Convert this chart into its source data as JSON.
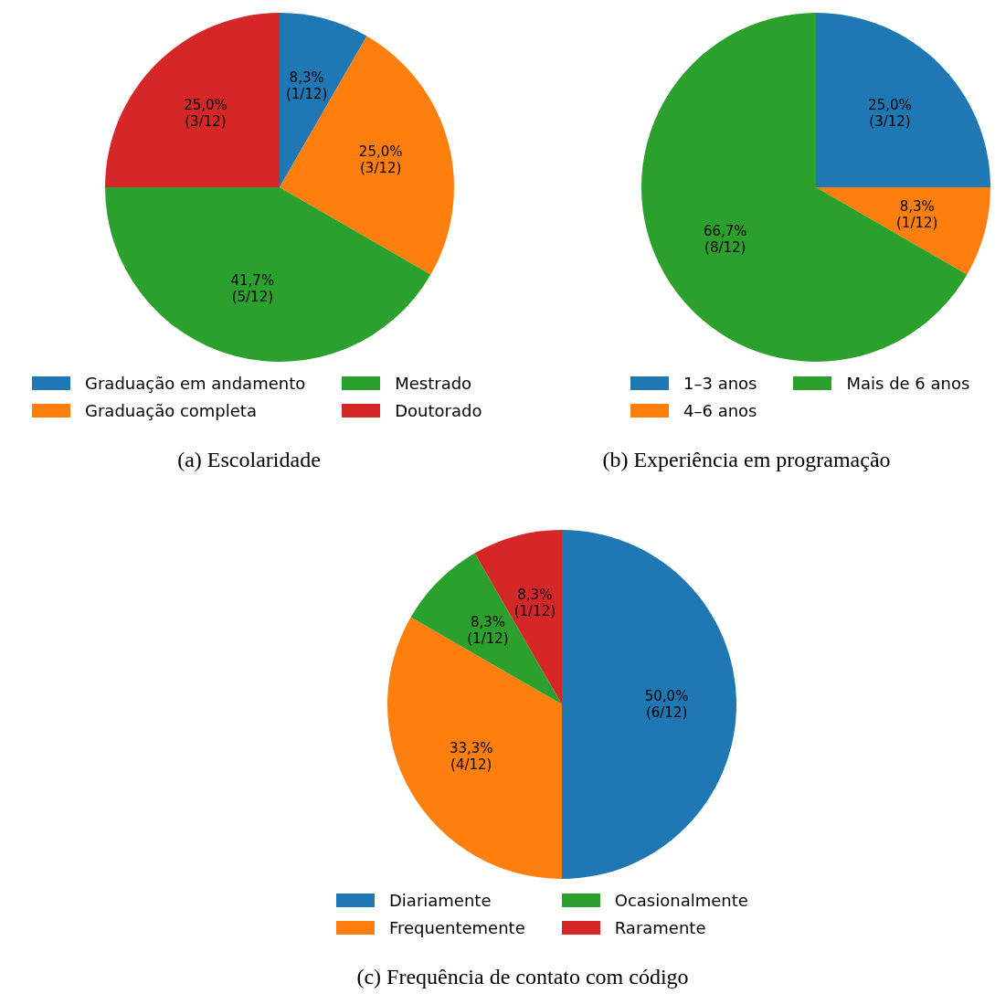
{
  "chart_data": [
    {
      "type": "pie",
      "title": "(a) Escolaridade",
      "categories": [
        "Graduação em andamento",
        "Graduação completa",
        "Mestrado",
        "Doutorado"
      ],
      "values": [
        1,
        3,
        5,
        3
      ],
      "colors": [
        "#1f77b4",
        "#ff7f0e",
        "#2ca02c",
        "#d62728"
      ],
      "value_labels": [
        "8,3%\n(1/12)",
        "25,0%\n(3/12)",
        "41,7%\n(5/12)",
        "25,0%\n(3/12)"
      ],
      "legend": "bottom"
    },
    {
      "type": "pie",
      "title": "(b) Experiência em programação",
      "categories": [
        "1–3 anos",
        "4–6 anos",
        "Mais de 6 anos"
      ],
      "values": [
        3,
        1,
        8
      ],
      "colors": [
        "#1f77b4",
        "#ff7f0e",
        "#2ca02c"
      ],
      "value_labels": [
        "25,0%\n(3/12)",
        "8,3%\n(1/12)",
        "66,7%\n(8/12)"
      ],
      "legend": "bottom"
    },
    {
      "type": "pie",
      "title": "(c) Frequência de contato com código",
      "categories": [
        "Diariamente",
        "Frequentemente",
        "Ocasionalmente",
        "Raramente"
      ],
      "values": [
        6,
        4,
        1,
        1
      ],
      "colors": [
        "#1f77b4",
        "#ff7f0e",
        "#2ca02c",
        "#d62728"
      ],
      "value_labels": [
        "50,0%\n(6/12)",
        "33,3%\n(4/12)",
        "8,3%\n(1/12)",
        "8,3%\n(1/12)"
      ],
      "legend": "bottom"
    }
  ]
}
